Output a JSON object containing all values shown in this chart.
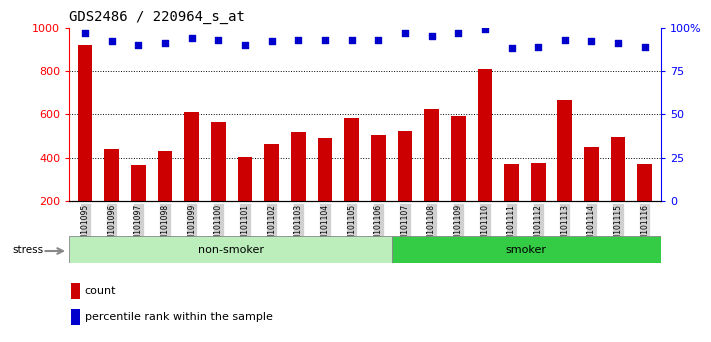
{
  "title": "GDS2486 / 220964_s_at",
  "samples": [
    "GSM101095",
    "GSM101096",
    "GSM101097",
    "GSM101098",
    "GSM101099",
    "GSM101100",
    "GSM101101",
    "GSM101102",
    "GSM101103",
    "GSM101104",
    "GSM101105",
    "GSM101106",
    "GSM101107",
    "GSM101108",
    "GSM101109",
    "GSM101110",
    "GSM101111",
    "GSM101112",
    "GSM101113",
    "GSM101114",
    "GSM101115",
    "GSM101116"
  ],
  "counts": [
    920,
    440,
    365,
    430,
    610,
    565,
    405,
    465,
    520,
    490,
    585,
    505,
    525,
    625,
    590,
    810,
    370,
    375,
    665,
    450,
    495,
    370
  ],
  "percentile_ranks": [
    97,
    92,
    90,
    91,
    94,
    93,
    90,
    92,
    93,
    93,
    93,
    93,
    97,
    95,
    97,
    99,
    88,
    89,
    93,
    92,
    91,
    89
  ],
  "non_smoker_count": 12,
  "smoker_count": 10,
  "bar_color": "#cc0000",
  "dot_color": "#0000cc",
  "non_smoker_color": "#bbeebb",
  "smoker_color": "#33cc44",
  "plot_bg": "#ffffff",
  "ylim_left": [
    200,
    1000
  ],
  "ylim_right": [
    0,
    100
  ],
  "yticks_left": [
    200,
    400,
    600,
    800,
    1000
  ],
  "yticks_right": [
    0,
    25,
    50,
    75,
    100
  ],
  "yticklabels_right": [
    "0",
    "25",
    "50",
    "75",
    "100%"
  ],
  "xtick_bg": "#d0d0d0",
  "grid_lines": [
    400,
    600,
    800
  ]
}
